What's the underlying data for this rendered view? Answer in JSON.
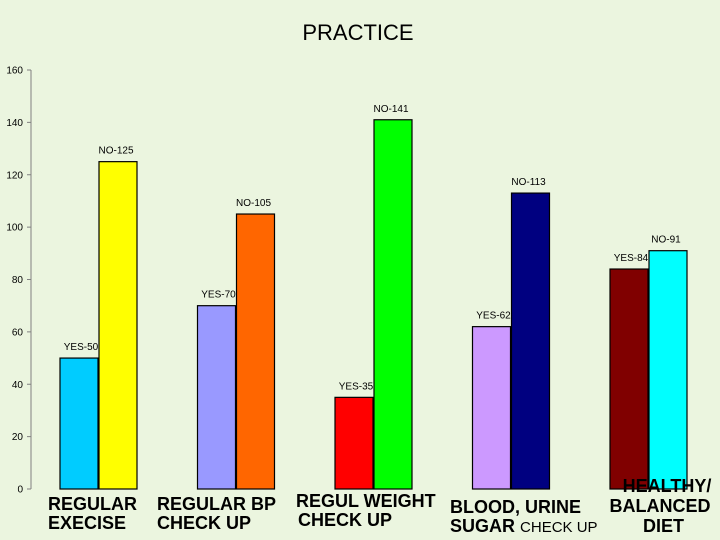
{
  "chart_data": {
    "type": "bar",
    "title": "PRACTICE",
    "categories": [
      {
        "line1": "REGULAR",
        "line2": "EXECISE",
        "line2_suffix": ""
      },
      {
        "line1": "REGULAR BP",
        "line2": "CHECK UP",
        "line2_suffix": ""
      },
      {
        "line1": "REGUL WEIGHT",
        "line2": "CHECK UP",
        "line2_suffix": ""
      },
      {
        "line1": "BLOOD, URINE",
        "line2": "SUGAR",
        "line2_suffix": "CHECK UP"
      },
      {
        "line1": "HEALTHY/",
        "line2": "BALANCED",
        "line3": "DIET"
      }
    ],
    "yes_values": [
      50,
      70,
      35,
      62,
      84
    ],
    "no_values": [
      125,
      105,
      141,
      113,
      91
    ],
    "yes_labels": [
      "YES-50",
      "YES-70",
      "YES-35",
      "YES-62",
      "YES-84"
    ],
    "no_labels": [
      "NO-125",
      "NO-105",
      "NO-141",
      "NO-113",
      "NO-91"
    ],
    "yes_colors": [
      "#00ccff",
      "#9999ff",
      "#ff0000",
      "#cc99ff",
      "#800000"
    ],
    "no_colors": [
      "#ffff00",
      "#ff6600",
      "#00ff00",
      "#000080",
      "#00ffff"
    ],
    "ylim": [
      0,
      160
    ],
    "yticks": [
      0,
      20,
      40,
      60,
      80,
      100,
      120,
      140,
      160
    ],
    "grid": false,
    "legend": "none"
  }
}
